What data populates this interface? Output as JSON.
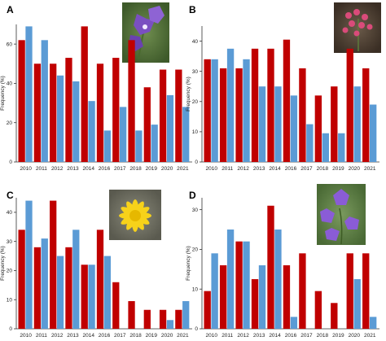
{
  "colors": {
    "red": "#c00000",
    "blue": "#5b9bd5",
    "axis": "#333333"
  },
  "chart_data": [
    {
      "panel": "A",
      "type": "bar",
      "ylabel": "Frequency (%)",
      "ylim": [
        0,
        70
      ],
      "yticks": [
        0,
        20,
        40,
        60
      ],
      "categories": [
        "2010",
        "2011",
        "2012",
        "2013",
        "2014",
        "2016",
        "2017",
        "2018",
        "2019",
        "2020",
        "2021"
      ],
      "series": [
        {
          "color": "red",
          "values": [
            62,
            50,
            50,
            53,
            69,
            50,
            53,
            62,
            38,
            47,
            47
          ]
        },
        {
          "color": "blue",
          "values": [
            69,
            62,
            44,
            41,
            31,
            16,
            28,
            16,
            19,
            34,
            28
          ]
        }
      ],
      "photo": "bellflower-photo"
    },
    {
      "panel": "B",
      "type": "bar",
      "ylabel": "Frequency (%)",
      "ylim": [
        0,
        45
      ],
      "yticks": [
        0,
        10,
        20,
        30,
        40
      ],
      "categories": [
        "2010",
        "2011",
        "2012",
        "2013",
        "2014",
        "2016",
        "2017",
        "2018",
        "2019",
        "2020",
        "2021"
      ],
      "series": [
        {
          "color": "red",
          "values": [
            34,
            31,
            31,
            37.5,
            37.5,
            40.5,
            31,
            22,
            25,
            37.5,
            31
          ]
        },
        {
          "color": "blue",
          "values": [
            34,
            37.5,
            34,
            25,
            25,
            22,
            12.5,
            9.5,
            9.5,
            25,
            19
          ]
        }
      ],
      "photo": "pink-flower-photo"
    },
    {
      "panel": "C",
      "type": "bar",
      "ylabel": "Frequency (%)",
      "ylim": [
        0,
        45
      ],
      "yticks": [
        0,
        10,
        20,
        30,
        40
      ],
      "categories": [
        "2010",
        "2011",
        "2012",
        "2013",
        "2014",
        "2016",
        "2017",
        "2018",
        "2019",
        "2020",
        "2021"
      ],
      "series": [
        {
          "color": "red",
          "values": [
            34,
            28,
            44,
            28,
            22,
            34,
            16,
            9.5,
            6.5,
            6.5,
            6.5
          ]
        },
        {
          "color": "blue",
          "values": [
            44,
            31,
            25,
            34,
            22,
            25,
            0,
            0,
            0,
            3,
            9.5
          ]
        }
      ],
      "photo": "yellow-flower-photo"
    },
    {
      "panel": "D",
      "type": "bar",
      "ylabel": "Frequency (%)",
      "ylim": [
        0,
        33
      ],
      "yticks": [
        0,
        10,
        20,
        30
      ],
      "categories": [
        "2010",
        "2011",
        "2012",
        "2013",
        "2014",
        "2016",
        "2017",
        "2018",
        "2019",
        "2020",
        "2021"
      ],
      "series": [
        {
          "color": "red",
          "values": [
            9.5,
            16,
            22,
            12.5,
            31,
            16,
            19,
            9.5,
            6.5,
            19,
            19
          ]
        },
        {
          "color": "blue",
          "values": [
            19,
            25,
            22,
            16,
            25,
            3,
            0,
            0,
            0,
            12.5,
            3
          ]
        }
      ],
      "photo": "purple-flower-photo"
    }
  ]
}
